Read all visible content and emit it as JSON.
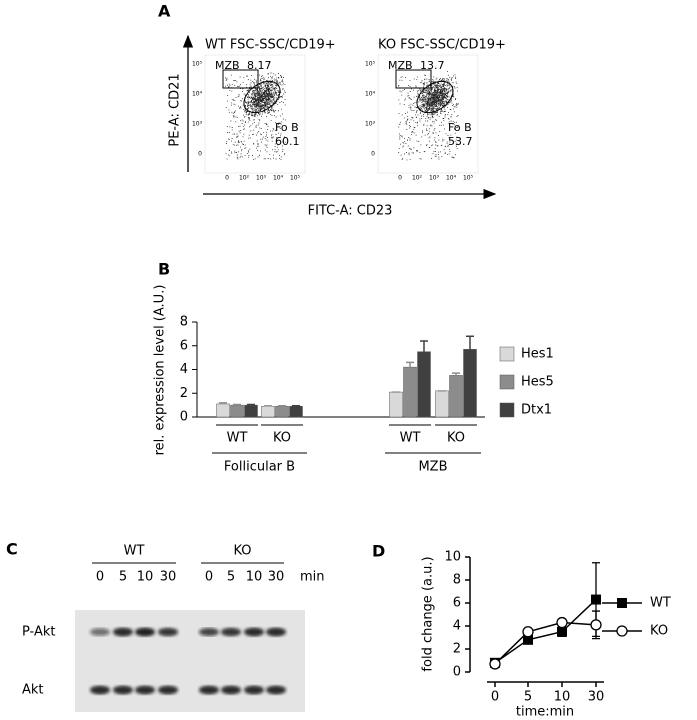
{
  "panels": {
    "a": "A",
    "b": "B",
    "c": "C",
    "d": "D"
  },
  "flow": {
    "y_label": "PE-A: CD21",
    "x_label": "FITC-A: CD23",
    "y_ticks": [
      "10⁵",
      "10⁴",
      "10³",
      "0"
    ],
    "x_ticks": [
      "0",
      "10²",
      "10³",
      "10⁴",
      "10⁵"
    ],
    "plots": [
      {
        "title": "WT FSC-SSC/CD19+",
        "gate1_label": "MZB",
        "gate1_value": 8.17,
        "gate2_label": "Fo B",
        "gate2_value": 60.1
      },
      {
        "title": "KO FSC-SSC/CD19+",
        "gate1_label": "MZB",
        "gate1_value": 13.7,
        "gate2_label": "Fo B",
        "gate2_value": 53.7
      }
    ]
  },
  "blot": {
    "groups": [
      {
        "label": "WT",
        "times": [
          0,
          5,
          10,
          30
        ]
      },
      {
        "label": "KO",
        "times": [
          0,
          5,
          10,
          30
        ]
      }
    ],
    "unit": "min",
    "rows": [
      "P-Akt",
      "Akt"
    ]
  },
  "chart_data": [
    {
      "type": "bar",
      "y_label": "rel. expression level (A.U.)",
      "categories": [
        "WT",
        "KO",
        "WT",
        "KO"
      ],
      "groups": [
        "Follicular B",
        "MZB"
      ],
      "series": [
        {
          "name": "Hes1",
          "color": "#d9d9d9",
          "values": [
            1.1,
            0.9,
            2.1,
            2.2
          ],
          "errors": [
            0.1,
            0.05,
            0,
            0
          ]
        },
        {
          "name": "Hes5",
          "color": "#8c8c8c",
          "values": [
            1.0,
            0.9,
            4.2,
            3.5
          ],
          "errors": [
            0.05,
            0.05,
            0.4,
            0.2
          ]
        },
        {
          "name": "Dtx1",
          "color": "#404040",
          "values": [
            1.0,
            0.9,
            5.5,
            5.7
          ],
          "errors": [
            0.05,
            0.05,
            0.9,
            1.1
          ]
        }
      ],
      "ylim": [
        0,
        8
      ],
      "yticks": [
        0,
        2,
        4,
        6,
        8
      ]
    },
    {
      "type": "line",
      "y_label": "fold change (a.u.)",
      "x_label": "time:min",
      "categories": [
        "0",
        "5",
        "10",
        "30"
      ],
      "series": [
        {
          "name": "WT",
          "color": "#000000",
          "marker": "square",
          "values": [
            0.8,
            2.8,
            3.5,
            6.3
          ],
          "errors": [
            0.1,
            0.3,
            0.4,
            3.2
          ]
        },
        {
          "name": "KO",
          "color": "#000000",
          "marker": "circle",
          "values": [
            0.7,
            3.5,
            4.3,
            4.1
          ],
          "errors": [
            0.1,
            0.3,
            0.3,
            1.2
          ]
        }
      ],
      "ylim": [
        0,
        10
      ],
      "yticks": [
        0,
        2,
        4,
        6,
        8,
        10
      ]
    }
  ]
}
